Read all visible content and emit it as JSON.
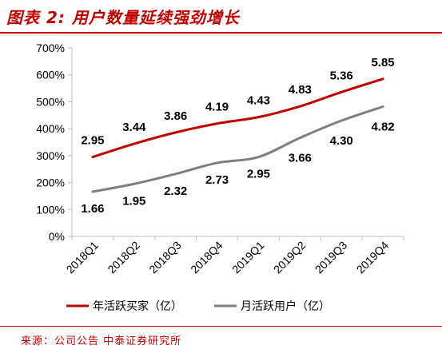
{
  "header": {
    "title": "图表 2:  用户数量延续强劲增长"
  },
  "footer": {
    "source": "来源：公司公告  中泰证券研究所"
  },
  "colors": {
    "accent": "#c00000",
    "series_1": "#c00000",
    "series_2": "#7f7f7f",
    "axis": "#bfbfbf",
    "text": "#000000"
  },
  "chart_data": {
    "type": "line",
    "categories": [
      "2018Q1",
      "2018Q2",
      "2018Q3",
      "2018Q4",
      "2019Q1",
      "2019Q2",
      "2019Q3",
      "2019Q4"
    ],
    "y_ticks": [
      "0%",
      "100%",
      "200%",
      "300%",
      "400%",
      "500%",
      "600%",
      "700%"
    ],
    "ylim": [
      0,
      7
    ],
    "grid": false,
    "legend_position": "bottom",
    "series": [
      {
        "name": "年活跃买家（亿）",
        "values": [
          2.95,
          3.44,
          3.86,
          4.19,
          4.43,
          4.83,
          5.36,
          5.85
        ],
        "labels": [
          "2.95",
          "3.44",
          "3.86",
          "4.19",
          "4.43",
          "4.83",
          "5.36",
          "5.85"
        ]
      },
      {
        "name": "月活跃用户（亿）",
        "values": [
          1.66,
          1.95,
          2.32,
          2.73,
          2.95,
          3.66,
          4.3,
          4.82
        ],
        "labels": [
          "1.66",
          "1.95",
          "2.32",
          "2.73",
          "2.95",
          "3.66",
          "4.30",
          "4.82"
        ]
      }
    ]
  }
}
